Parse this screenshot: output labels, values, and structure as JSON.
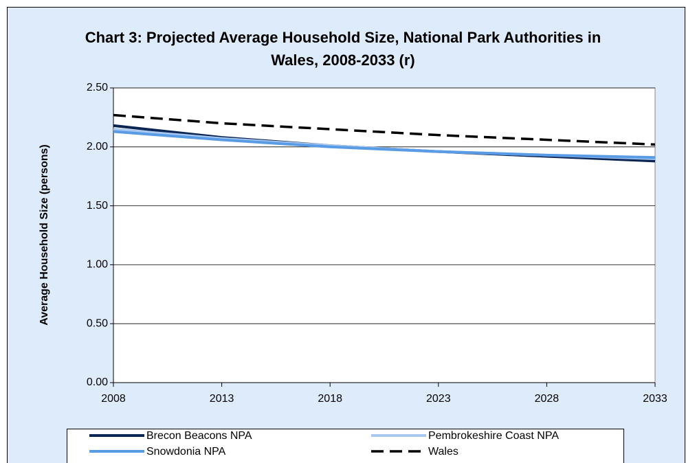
{
  "chart_data": {
    "type": "line",
    "title": "Chart 3: Projected Average Household Size, National Park Authorities in Wales, 2008-2033 (r)",
    "y_label": "Average Household Size (persons)",
    "x": [
      2008,
      2013,
      2018,
      2023,
      2028,
      2033
    ],
    "series": [
      {
        "name": "Brecon Beacons NPA",
        "color": "#0b2555",
        "values": [
          2.18,
          2.08,
          2.01,
          1.96,
          1.92,
          1.88
        ]
      },
      {
        "name": "Pembrokeshire Coast NPA",
        "color": "#a8c8f0",
        "values": [
          2.15,
          2.07,
          2.01,
          1.96,
          1.93,
          1.9
        ]
      },
      {
        "name": "Snowdonia NPA",
        "color": "#5a9be6",
        "values": [
          2.13,
          2.06,
          2.0,
          1.96,
          1.93,
          1.91
        ]
      },
      {
        "name": "Wales",
        "color": "#000000",
        "dashed": true,
        "values": [
          2.27,
          2.2,
          2.15,
          2.1,
          2.06,
          2.02
        ]
      }
    ],
    "xlim": [
      2008,
      2033
    ],
    "xticks": [
      2008,
      2013,
      2018,
      2023,
      2028,
      2033
    ],
    "ylim": [
      0,
      2.5
    ],
    "yticks": [
      {
        "value": 0,
        "label": "0.00"
      },
      {
        "value": 0.5,
        "label": "0.50"
      },
      {
        "value": 1,
        "label": "1.00"
      },
      {
        "value": 1.5,
        "label": "1.50"
      },
      {
        "value": 2,
        "label": "2.00"
      },
      {
        "value": 2.5,
        "label": "2.50"
      }
    ],
    "grid": true,
    "legend": "bottom"
  }
}
